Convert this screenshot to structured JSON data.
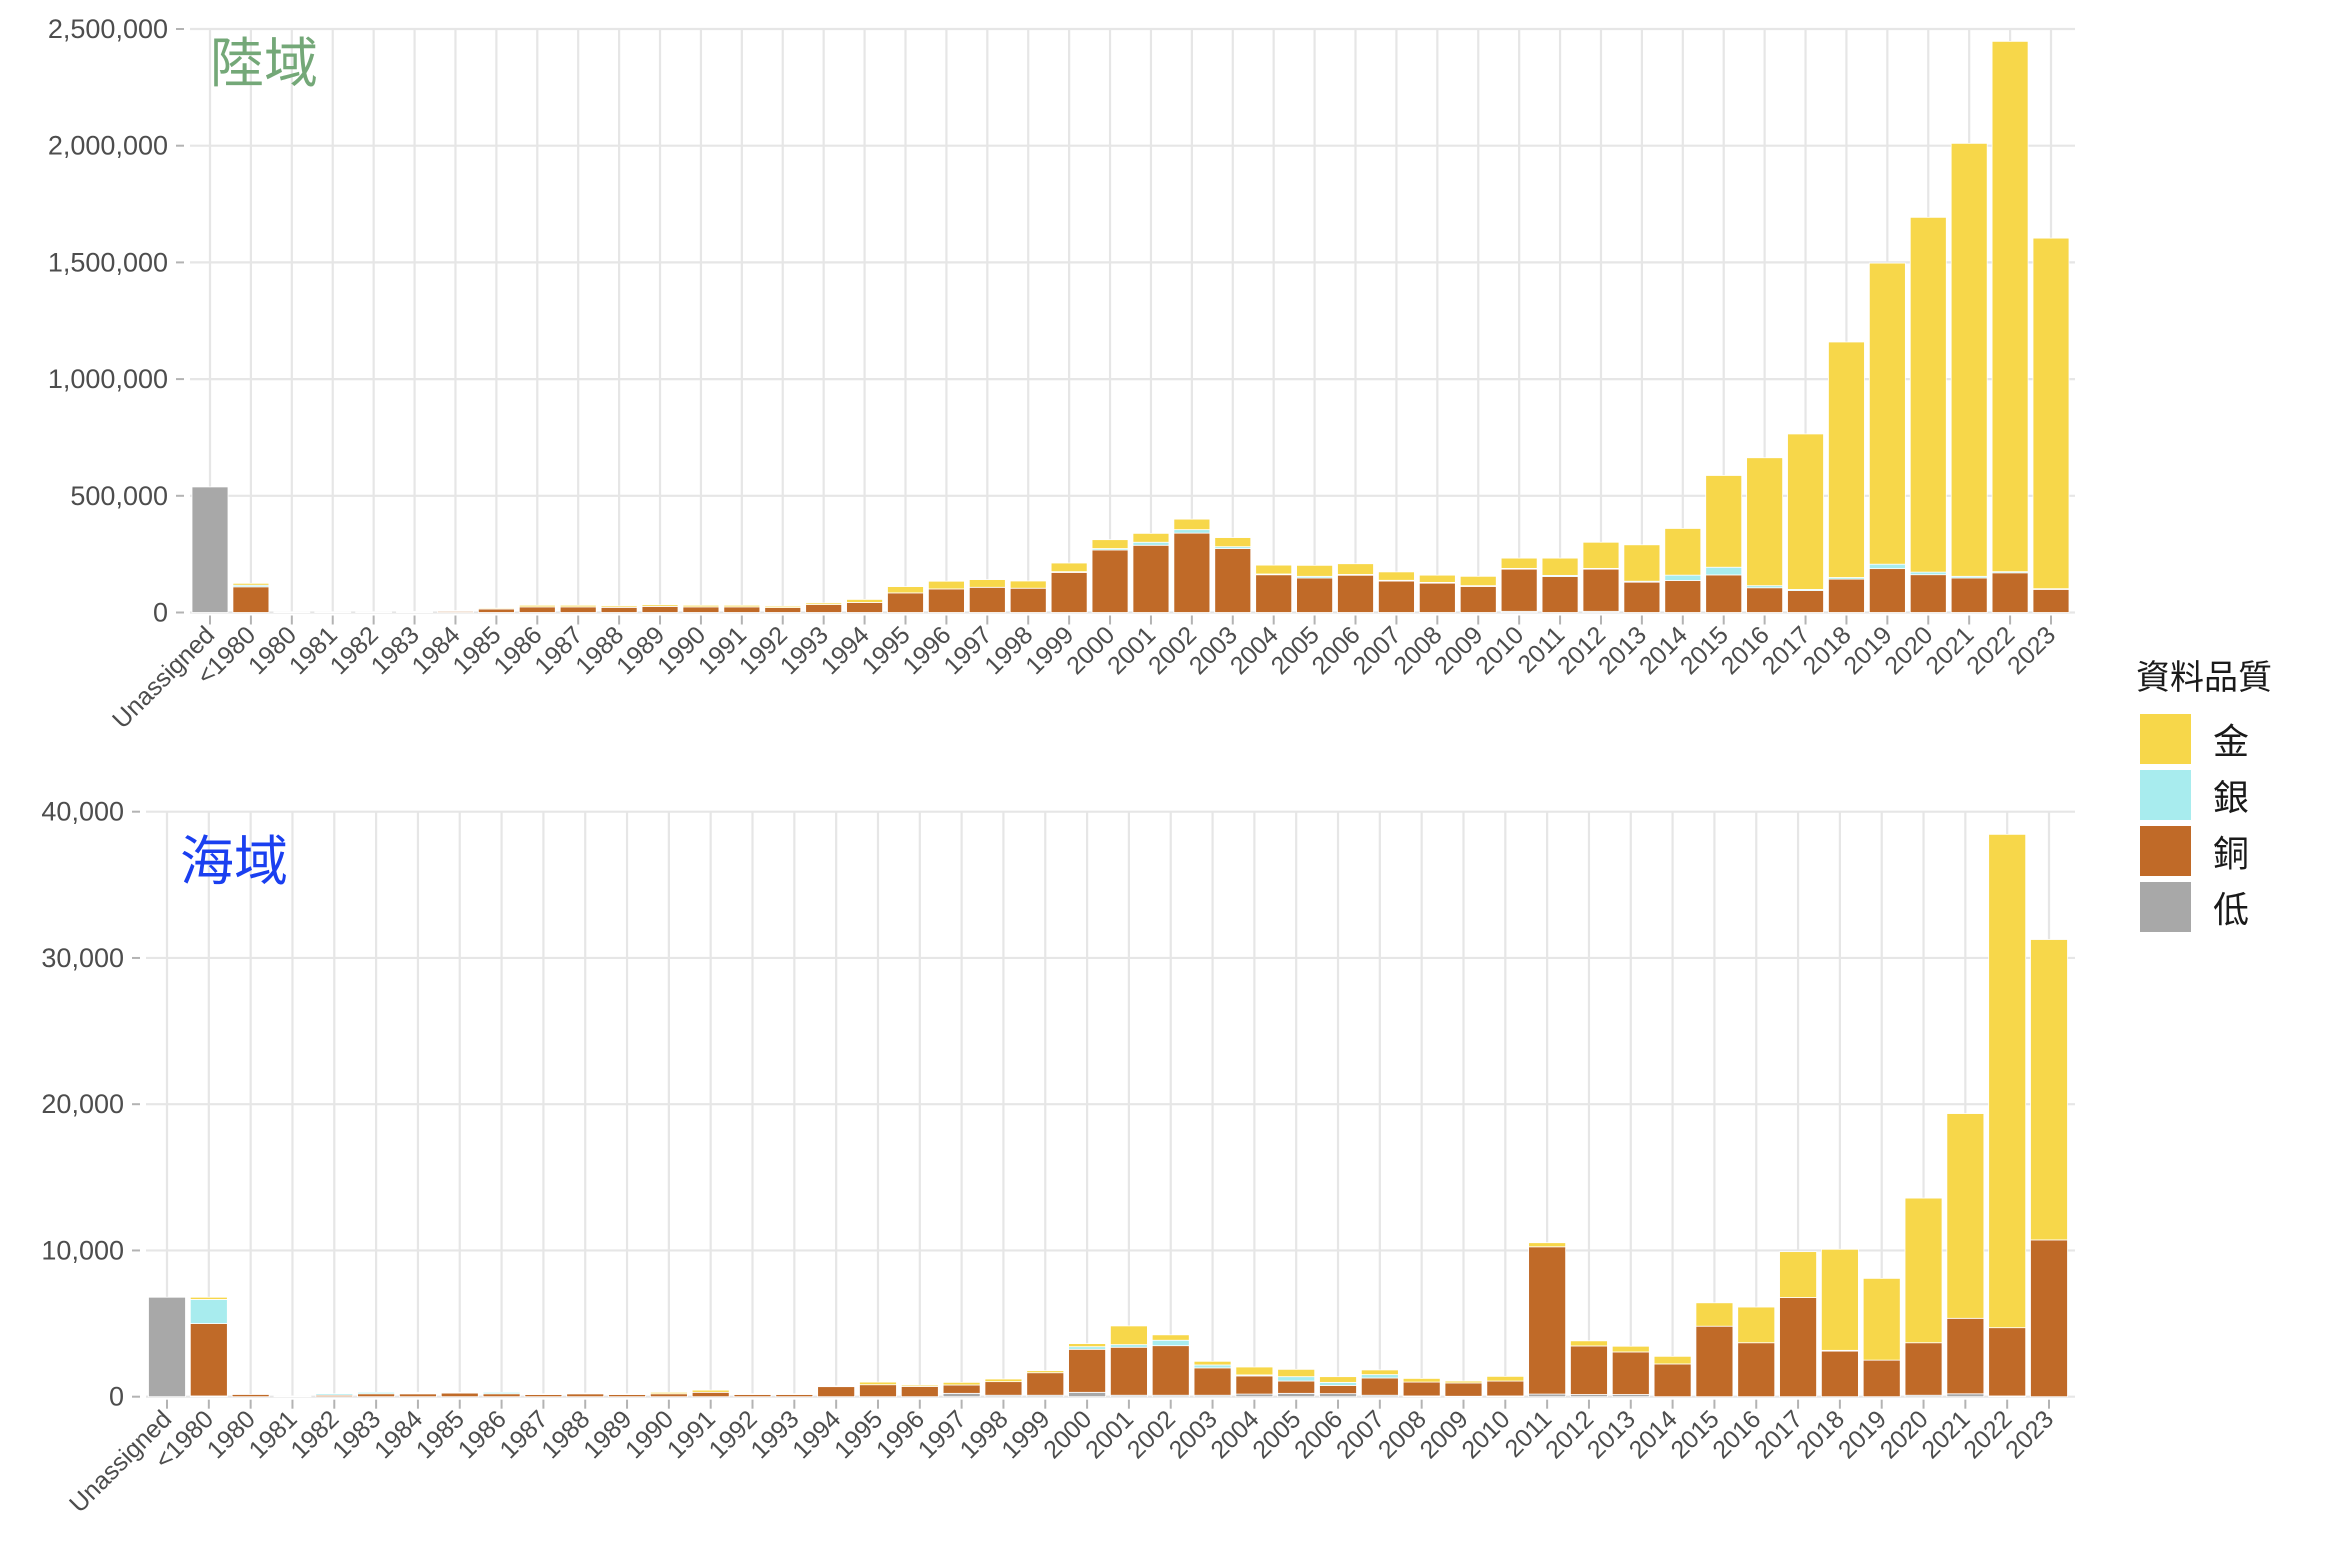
{
  "legend": {
    "title": "資料品質",
    "items": [
      {
        "key": "gold",
        "label": "金",
        "color": "#F7D74A"
      },
      {
        "key": "silver",
        "label": "銀",
        "color": "#A8ECEE"
      },
      {
        "key": "bronze",
        "label": "銅",
        "color": "#C06A28"
      },
      {
        "key": "low",
        "label": "低",
        "color": "#A8A8A8"
      }
    ]
  },
  "chart_data": [
    {
      "type": "bar",
      "stacked": true,
      "title": "陸域",
      "title_color": "#74A878",
      "xlabel": "",
      "ylabel": "",
      "ylim": [
        0,
        2500000
      ],
      "yticks": [
        0,
        500000,
        1000000,
        1500000,
        2000000,
        2500000
      ],
      "ytick_labels": [
        "0",
        "500,000",
        "1,000,000",
        "1,500,000",
        "2,000,000",
        "2,500,000"
      ],
      "grid": true,
      "legend_position": "right",
      "categories": [
        "Unassigned",
        "<1980",
        "1980",
        "1981",
        "1982",
        "1983",
        "1984",
        "1985",
        "1986",
        "1987",
        "1988",
        "1989",
        "1990",
        "1991",
        "1992",
        "1993",
        "1994",
        "1995",
        "1996",
        "1997",
        "1998",
        "1999",
        "2000",
        "2001",
        "2002",
        "2003",
        "2004",
        "2005",
        "2006",
        "2007",
        "2008",
        "2009",
        "2010",
        "2011",
        "2012",
        "2013",
        "2014",
        "2015",
        "2016",
        "2017",
        "2018",
        "2019",
        "2020",
        "2021",
        "2022",
        "2023"
      ],
      "series": [
        {
          "name": "低",
          "key": "low",
          "values": [
            538000,
            0,
            0,
            0,
            0,
            0,
            0,
            0,
            0,
            0,
            0,
            0,
            0,
            0,
            0,
            0,
            0,
            0,
            0,
            0,
            0,
            0,
            0,
            0,
            0,
            0,
            0,
            0,
            0,
            0,
            0,
            0,
            5000,
            0,
            5000,
            0,
            0,
            0,
            0,
            0,
            0,
            0,
            0,
            0,
            0,
            0
          ]
        },
        {
          "name": "銅",
          "key": "bronze",
          "values": [
            0,
            110000,
            3000,
            3000,
            3000,
            3000,
            6000,
            15000,
            24000,
            24000,
            22000,
            26000,
            24000,
            24000,
            21000,
            34000,
            43000,
            84000,
            101000,
            108000,
            104000,
            172000,
            268000,
            288000,
            340000,
            274000,
            162000,
            148000,
            160000,
            135000,
            126000,
            112000,
            181000,
            154000,
            181000,
            130000,
            137000,
            161000,
            106000,
            94000,
            143000,
            188000,
            162000,
            148000,
            170000,
            100000
          ]
        },
        {
          "name": "銀",
          "key": "silver",
          "values": [
            0,
            7000,
            0,
            0,
            0,
            0,
            0,
            0,
            0,
            0,
            0,
            0,
            0,
            0,
            0,
            0,
            0,
            0,
            0,
            0,
            0,
            3000,
            6000,
            13000,
            15000,
            8000,
            3000,
            7000,
            3000,
            3000,
            3000,
            3000,
            3000,
            5000,
            3000,
            4000,
            23000,
            33000,
            9000,
            5000,
            7000,
            19000,
            11000,
            7000,
            5000,
            2000
          ]
        },
        {
          "name": "金",
          "key": "gold",
          "values": [
            0,
            8000,
            0,
            0,
            0,
            1000,
            2000,
            4000,
            7000,
            7000,
            6000,
            7000,
            7000,
            7000,
            6000,
            7000,
            13000,
            27000,
            33000,
            33000,
            31000,
            37000,
            38000,
            38000,
            45000,
            39000,
            38000,
            47000,
            46000,
            36000,
            31000,
            40000,
            44000,
            74000,
            112000,
            156000,
            200000,
            393000,
            548000,
            666000,
            1009000,
            1290000,
            1520000,
            1855000,
            2272000,
            1502000
          ]
        }
      ]
    },
    {
      "type": "bar",
      "stacked": true,
      "title": "海域",
      "title_color": "#1A3FF0",
      "xlabel": "",
      "ylabel": "",
      "ylim": [
        0,
        40000
      ],
      "yticks": [
        0,
        10000,
        20000,
        30000,
        40000
      ],
      "ytick_labels": [
        "0",
        "10,000",
        "20,000",
        "30,000",
        "40,000"
      ],
      "grid": true,
      "legend_position": "right",
      "categories": [
        "Unassigned",
        "<1980",
        "1980",
        "1981",
        "1982",
        "1983",
        "1984",
        "1985",
        "1986",
        "1987",
        "1988",
        "1989",
        "1990",
        "1991",
        "1992",
        "1993",
        "1994",
        "1995",
        "1996",
        "1997",
        "1998",
        "1999",
        "2000",
        "2001",
        "2002",
        "2003",
        "2004",
        "2005",
        "2006",
        "2007",
        "2008",
        "2009",
        "2010",
        "2011",
        "2012",
        "2013",
        "2014",
        "2015",
        "2016",
        "2017",
        "2018",
        "2019",
        "2020",
        "2021",
        "2022",
        "2023"
      ],
      "series": [
        {
          "name": "低",
          "key": "low",
          "values": [
            6800,
            50,
            0,
            0,
            0,
            0,
            0,
            0,
            0,
            0,
            0,
            0,
            0,
            0,
            0,
            0,
            0,
            0,
            0,
            230,
            100,
            100,
            300,
            100,
            100,
            100,
            180,
            230,
            210,
            100,
            50,
            30,
            50,
            180,
            150,
            150,
            0,
            0,
            0,
            0,
            0,
            0,
            100,
            200,
            50,
            0
          ]
        },
        {
          "name": "銅",
          "key": "bronze",
          "values": [
            0,
            4950,
            150,
            50,
            100,
            200,
            200,
            250,
            200,
            150,
            200,
            150,
            200,
            300,
            180,
            180,
            720,
            820,
            700,
            570,
            930,
            1540,
            2940,
            3280,
            3390,
            1870,
            1240,
            840,
            560,
            1180,
            950,
            910,
            1020,
            10070,
            3320,
            2910,
            2240,
            4820,
            3690,
            6780,
            3140,
            2500,
            3590,
            5160,
            4670,
            10720
          ]
        },
        {
          "name": "銀",
          "key": "silver",
          "values": [
            0,
            1650,
            0,
            0,
            100,
            100,
            50,
            0,
            100,
            0,
            0,
            0,
            0,
            0,
            0,
            0,
            0,
            0,
            0,
            0,
            0,
            0,
            180,
            180,
            370,
            200,
            70,
            300,
            210,
            230,
            0,
            0,
            0,
            0,
            0,
            0,
            0,
            0,
            0,
            0,
            30,
            0,
            0,
            0,
            0,
            0
          ]
        },
        {
          "name": "金",
          "key": "gold",
          "values": [
            0,
            150,
            0,
            0,
            0,
            0,
            50,
            50,
            0,
            50,
            50,
            50,
            100,
            150,
            20,
            20,
            20,
            180,
            90,
            180,
            180,
            140,
            210,
            1280,
            370,
            250,
            540,
            500,
            390,
            320,
            250,
            130,
            320,
            280,
            350,
            390,
            520,
            1600,
            2440,
            3140,
            6910,
            5590,
            9890,
            14000,
            33730,
            20540
          ]
        }
      ]
    }
  ]
}
